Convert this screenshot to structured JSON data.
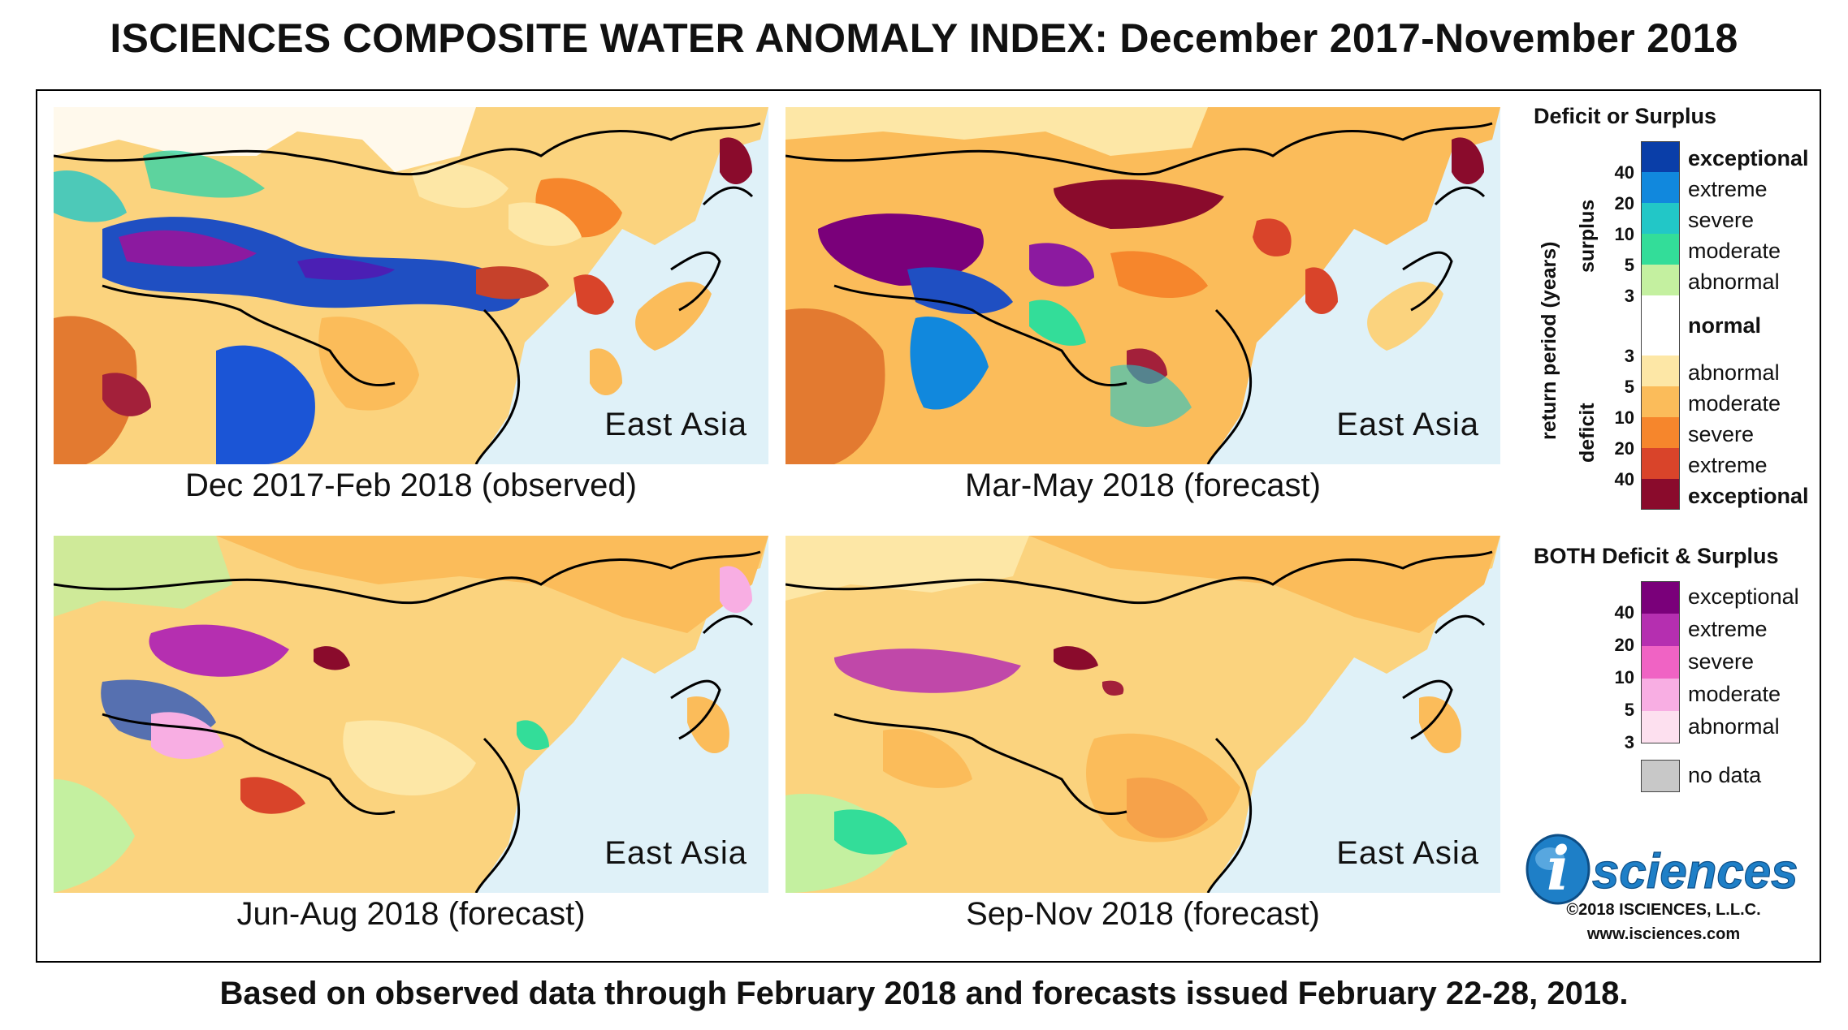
{
  "title": "ISCIENCES COMPOSITE WATER ANOMALY INDEX: December 2017-November 2018",
  "footer": "Based on observed data through February 2018 and forecasts issued February 22-28, 2018.",
  "panels": [
    {
      "region": "East Asia",
      "caption": "Dec 2017-Feb 2018 (observed)"
    },
    {
      "region": "East Asia",
      "caption": "Mar-May 2018 (forecast)"
    },
    {
      "region": "East Asia",
      "caption": "Jun-Aug 2018 (forecast)"
    },
    {
      "region": "East Asia",
      "caption": "Sep-Nov 2018 (forecast)"
    }
  ],
  "legend": {
    "title1": "Deficit or Surplus",
    "axis_label": "return period (years)",
    "surplus_label": "surplus",
    "deficit_label": "deficit",
    "normal_label": "normal",
    "surplus_items": [
      {
        "label": "exceptional",
        "color": "#0a3ea8"
      },
      {
        "label": "extreme",
        "color": "#1188dd"
      },
      {
        "label": "severe",
        "color": "#22c7c7"
      },
      {
        "label": "moderate",
        "color": "#33dd99"
      },
      {
        "label": "abnormal",
        "color": "#c4f0a0"
      }
    ],
    "surplus_numbers": [
      "40",
      "20",
      "10",
      "5",
      "3"
    ],
    "deficit_items": [
      {
        "label": "abnormal",
        "color": "#fde7a6"
      },
      {
        "label": "moderate",
        "color": "#fbbc5a"
      },
      {
        "label": "severe",
        "color": "#f6862c"
      },
      {
        "label": "extreme",
        "color": "#d9442a"
      },
      {
        "label": "exceptional",
        "color": "#8a0b2c"
      }
    ],
    "deficit_numbers": [
      "3",
      "5",
      "10",
      "20",
      "40"
    ],
    "title2": "BOTH Deficit & Surplus",
    "both_items": [
      {
        "label": "exceptional",
        "color": "#7a007a"
      },
      {
        "label": "extreme",
        "color": "#b52fb0"
      },
      {
        "label": "severe",
        "color": "#f063c4"
      },
      {
        "label": "moderate",
        "color": "#f8aee3"
      },
      {
        "label": "abnormal",
        "color": "#fde0ef"
      }
    ],
    "both_numbers": [
      "40",
      "20",
      "10",
      "5",
      "3"
    ],
    "nodata_label": "no data",
    "nodata_color": "#c8c8c8"
  },
  "logo": {
    "letter": "i",
    "text": "sciences"
  },
  "copyright": "©2018 ISCIENCES, L.L.C.",
  "website": "www.isciences.com"
}
